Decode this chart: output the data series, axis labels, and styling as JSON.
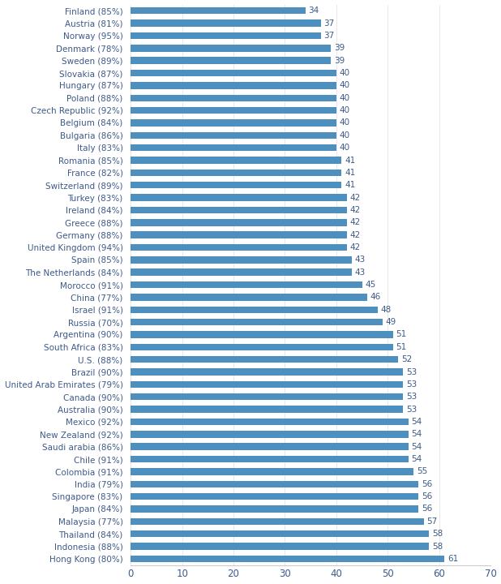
{
  "categories": [
    "Finland (85%)",
    "Austria (81%)",
    "Norway (95%)",
    "Denmark (78%)",
    "Sweden (89%)",
    "Slovakia (87%)",
    "Hungary (87%)",
    "Poland (88%)",
    "Czech Republic (92%)",
    "Belgium (84%)",
    "Bulgaria (86%)",
    "Italy (83%)",
    "Romania (85%)",
    "France (82%)",
    "Switzerland (89%)",
    "Turkey (83%)",
    "Ireland (84%)",
    "Greece (88%)",
    "Germany (88%)",
    "United Kingdom (94%)",
    "Spain (85%)",
    "The Netherlands (84%)",
    "Morocco (91%)",
    "China (77%)",
    "Israel (91%)",
    "Russia (70%)",
    "Argentina (90%)",
    "South Africa (83%)",
    "U.S. (88%)",
    "Brazil (90%)",
    "United Arab Emirates (79%)",
    "Canada (90%)",
    "Australia (90%)",
    "Mexico (92%)",
    "New Zealand (92%)",
    "Saudi arabia (86%)",
    "Chile (91%)",
    "Colombia (91%)",
    "India (79%)",
    "Singapore (83%)",
    "Japan (84%)",
    "Malaysia (77%)",
    "Thailand (84%)",
    "Indonesia (88%)",
    "Hong Kong (80%)"
  ],
  "values": [
    34,
    37,
    37,
    39,
    39,
    40,
    40,
    40,
    40,
    40,
    40,
    40,
    41,
    41,
    41,
    42,
    42,
    42,
    42,
    42,
    43,
    43,
    45,
    46,
    48,
    49,
    51,
    51,
    52,
    53,
    53,
    53,
    53,
    54,
    54,
    54,
    54,
    55,
    56,
    56,
    56,
    57,
    58,
    58,
    61
  ],
  "bar_color": "#4d8fbe",
  "label_color": "#3d5a8a",
  "value_color": "#3d5a8a",
  "tick_color": "#3d5a8a",
  "background_color": "#ffffff",
  "xlim": [
    0,
    70
  ],
  "xticks": [
    0,
    10,
    20,
    30,
    40,
    50,
    60,
    70
  ],
  "bar_height": 0.55,
  "label_fontsize": 7.5,
  "value_fontsize": 7.5,
  "tick_fontsize": 8.5
}
